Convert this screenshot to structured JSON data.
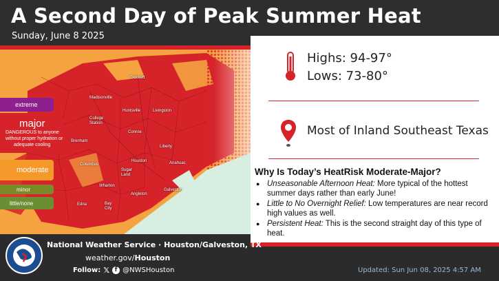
{
  "header": {
    "title": "A Second Day of Peak Summer Heat",
    "date": "Sunday, June 8 2025"
  },
  "legend": {
    "extreme": "extreme",
    "major": "major",
    "major_desc": [
      "DANGEROUS to anyone",
      "without proper hydration or",
      "adequate cooling"
    ],
    "moderate": "moderate",
    "minor": "minor",
    "little": "little/none"
  },
  "map": {
    "cities": [
      "Crockett",
      "Madisonville",
      "Huntsville",
      "Livingston",
      "College Station",
      "Conroe",
      "Brenham",
      "Liberty",
      "Columbus",
      "Houston",
      "Anahuac",
      "Sugar Land",
      "Wharton",
      "Angleton",
      "Galveston",
      "Edna",
      "Bay City"
    ]
  },
  "panel": {
    "highs": "Highs: 94-97°",
    "lows": "Lows: 73-80°",
    "area": "Most of Inland Southeast Texas",
    "why_title": "Why Is Today’s HeatRisk Moderate-Major?",
    "bullets": [
      {
        "lead": "Unseasonable Afternoon Heat:",
        "text": " More typical of the hottest summer days rather than early June!"
      },
      {
        "lead": "Little to No Overnight Relief:",
        "text": " Low temperatures are near record high values as well."
      },
      {
        "lead": "Persistent Heat:",
        "text": " This is the second straight day of this type of heat."
      }
    ]
  },
  "footer": {
    "nws": "National Weather Service · Houston/Galveston, TX",
    "web_prefix": "weather.gov/",
    "web_office": "Houston",
    "follow_label": "Follow:",
    "handle": "@NWSHouston",
    "updated": "Updated: Sun Jun 08, 2025 4:57 AM"
  },
  "colors": {
    "accent_red": "#d6232a",
    "major": "#d6232a",
    "moderate": "#f59a2a",
    "extreme": "#8e1f8e"
  }
}
